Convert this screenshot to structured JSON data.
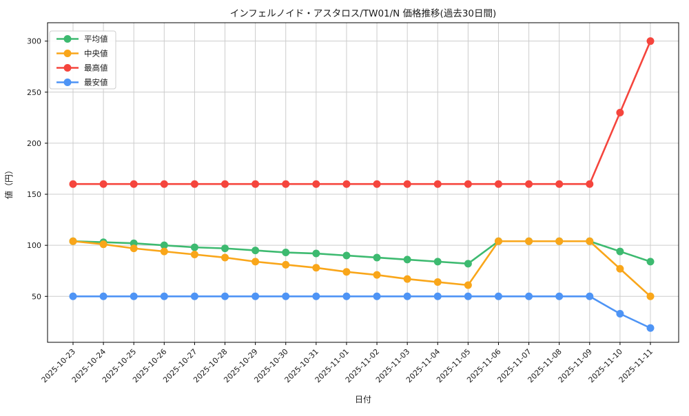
{
  "figure": {
    "background": "#ffffff"
  },
  "chart_data": {
    "type": "line",
    "title": "インフェルノイド・アスタロス/TW01/N 価格推移(過去30日間)",
    "xlabel": "日付",
    "ylabel": "値（円）",
    "x": [
      "2025-10-23",
      "2025-10-24",
      "2025-10-25",
      "2025-10-26",
      "2025-10-27",
      "2025-10-28",
      "2025-10-29",
      "2025-10-30",
      "2025-10-31",
      "2025-11-01",
      "2025-11-02",
      "2025-11-03",
      "2025-11-04",
      "2025-11-05",
      "2025-11-06",
      "2025-11-07",
      "2025-11-08",
      "2025-11-09",
      "2025-11-10",
      "2025-11-11"
    ],
    "series": [
      {
        "name": "平均値",
        "key": "average",
        "color": "#3DBA70",
        "values": [
          104,
          103,
          102,
          100,
          98,
          97,
          95,
          93,
          92,
          90,
          88,
          86,
          84,
          82,
          104,
          104,
          104,
          104,
          94,
          84
        ]
      },
      {
        "name": "中央値",
        "key": "median",
        "color": "#F9A61A",
        "values": [
          104,
          101,
          97,
          94,
          91,
          88,
          84,
          81,
          78,
          74,
          71,
          67,
          64,
          61,
          104,
          104,
          104,
          104,
          77,
          50
        ]
      },
      {
        "name": "最高値",
        "key": "max",
        "color": "#F5453D",
        "values": [
          160,
          160,
          160,
          160,
          160,
          160,
          160,
          160,
          160,
          160,
          160,
          160,
          160,
          160,
          160,
          160,
          160,
          160,
          230,
          300
        ]
      },
      {
        "name": "最安値",
        "key": "min",
        "color": "#4E94F5",
        "values": [
          50,
          50,
          50,
          50,
          50,
          50,
          50,
          50,
          50,
          50,
          50,
          50,
          50,
          50,
          50,
          50,
          50,
          50,
          33,
          19
        ]
      }
    ],
    "yticks": [
      50,
      100,
      150,
      200,
      250,
      300
    ],
    "ylim": [
      5,
      318
    ],
    "grid": true,
    "grid_color": "#cccccc",
    "axis_color": "#000000",
    "text_color": "#1a1a1a",
    "legend_position": "upper-left"
  }
}
